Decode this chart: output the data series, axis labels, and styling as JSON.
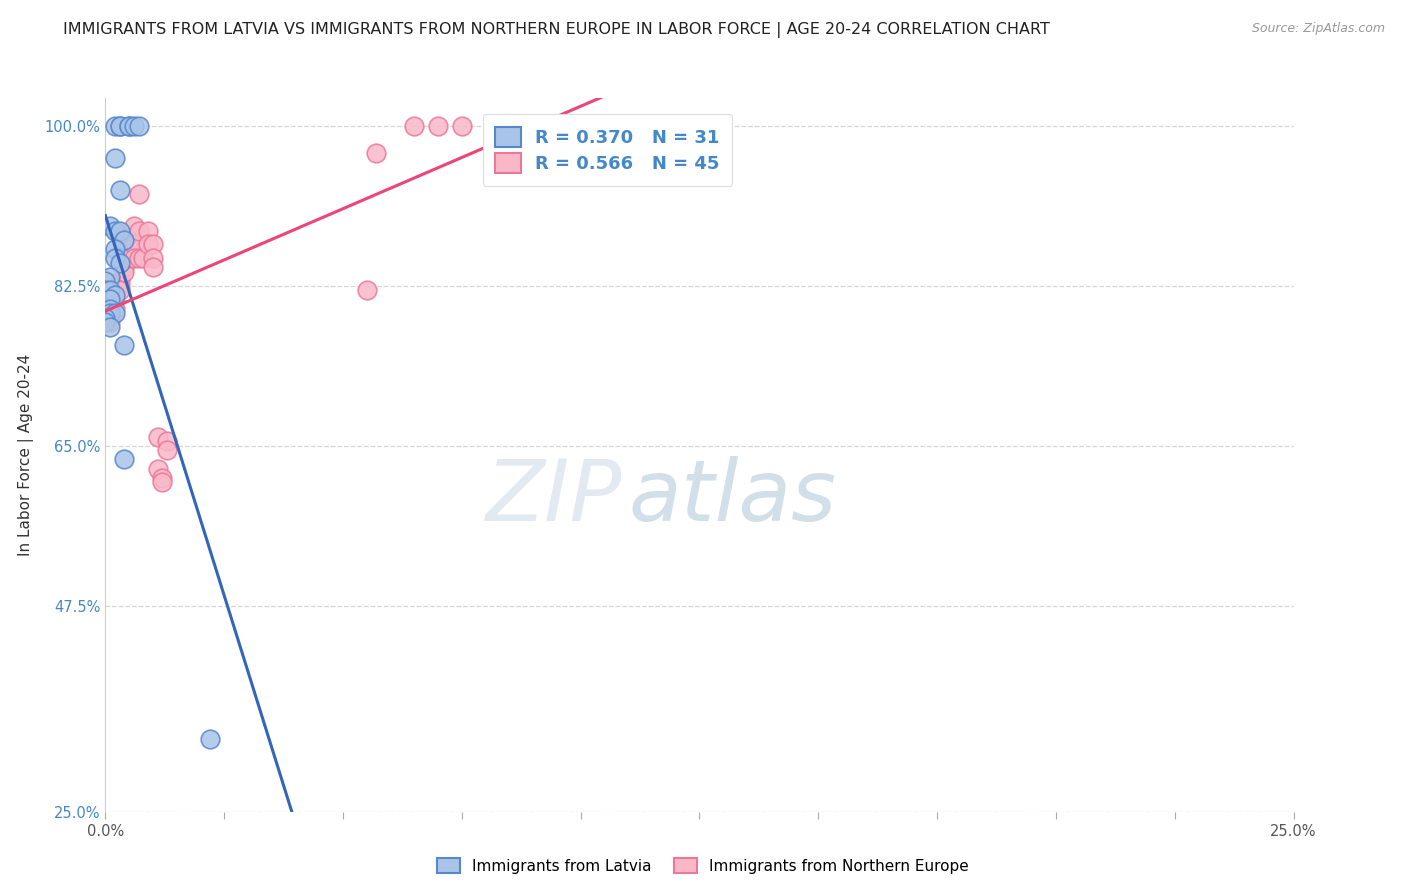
{
  "title": "IMMIGRANTS FROM LATVIA VS IMMIGRANTS FROM NORTHERN EUROPE IN LABOR FORCE | AGE 20-24 CORRELATION CHART",
  "source": "Source: ZipAtlas.com",
  "ylabel": "In Labor Force | Age 20-24",
  "xlim": [
    0.0,
    0.25
  ],
  "ylim": [
    0.25,
    1.03
  ],
  "xticks": [
    0.0,
    0.025,
    0.05,
    0.075,
    0.1,
    0.125,
    0.15,
    0.175,
    0.2,
    0.225,
    0.25
  ],
  "xticklabels": [
    "0.0%",
    "",
    "",
    "",
    "",
    "",
    "",
    "",
    "",
    "",
    "25.0%"
  ],
  "ytick_positions": [
    0.25,
    0.475,
    0.65,
    0.825,
    1.0
  ],
  "yticklabels": [
    "25.0%",
    "47.5%",
    "65.0%",
    "82.5%",
    "100.0%"
  ],
  "blue_R": 0.37,
  "blue_N": 31,
  "pink_R": 0.566,
  "pink_N": 45,
  "blue_color": "#aac4e8",
  "pink_color": "#f8b8c8",
  "blue_edge_color": "#5588cc",
  "pink_edge_color": "#ee7799",
  "blue_line_color": "#3366bb",
  "pink_line_color": "#ee4477",
  "legend_label_blue": "Immigrants from Latvia",
  "legend_label_pink": "Immigrants from Northern Europe",
  "watermark_zip": "ZIP",
  "watermark_atlas": "atlas",
  "blue_scatter_x": [
    0.002,
    0.003,
    0.003,
    0.005,
    0.005,
    0.006,
    0.007,
    0.002,
    0.003,
    0.001,
    0.002,
    0.003,
    0.004,
    0.002,
    0.002,
    0.003,
    0.001,
    0.0,
    0.0,
    0.001,
    0.002,
    0.001,
    0.001,
    0.001,
    0.002,
    0.0,
    0.0,
    0.001,
    0.004,
    0.004,
    0.022
  ],
  "blue_scatter_y": [
    1.0,
    1.0,
    1.0,
    1.0,
    1.0,
    1.0,
    1.0,
    0.965,
    0.93,
    0.89,
    0.885,
    0.885,
    0.875,
    0.865,
    0.855,
    0.85,
    0.835,
    0.83,
    0.82,
    0.82,
    0.815,
    0.81,
    0.8,
    0.795,
    0.795,
    0.79,
    0.785,
    0.78,
    0.76,
    0.635,
    0.33
  ],
  "pink_scatter_x": [
    0.0,
    0.0,
    0.0,
    0.001,
    0.001,
    0.001,
    0.002,
    0.002,
    0.002,
    0.002,
    0.003,
    0.003,
    0.003,
    0.004,
    0.004,
    0.004,
    0.005,
    0.005,
    0.005,
    0.006,
    0.006,
    0.006,
    0.007,
    0.007,
    0.007,
    0.008,
    0.009,
    0.009,
    0.01,
    0.01,
    0.01,
    0.011,
    0.011,
    0.012,
    0.012,
    0.013,
    0.013,
    0.055,
    0.057,
    0.065,
    0.07,
    0.075,
    0.085,
    0.09,
    0.095
  ],
  "pink_scatter_y": [
    0.8,
    0.8,
    0.795,
    0.795,
    0.79,
    0.785,
    0.82,
    0.815,
    0.81,
    0.8,
    0.83,
    0.825,
    0.82,
    0.855,
    0.845,
    0.84,
    0.875,
    0.865,
    0.855,
    0.89,
    0.87,
    0.855,
    0.925,
    0.885,
    0.855,
    0.855,
    0.885,
    0.87,
    0.87,
    0.855,
    0.845,
    0.66,
    0.625,
    0.615,
    0.61,
    0.655,
    0.645,
    0.82,
    0.97,
    1.0,
    1.0,
    1.0,
    1.0,
    1.0,
    1.0
  ],
  "title_fontsize": 11.5,
  "axis_label_fontsize": 11,
  "tick_fontsize": 10.5,
  "legend_fontsize": 13
}
